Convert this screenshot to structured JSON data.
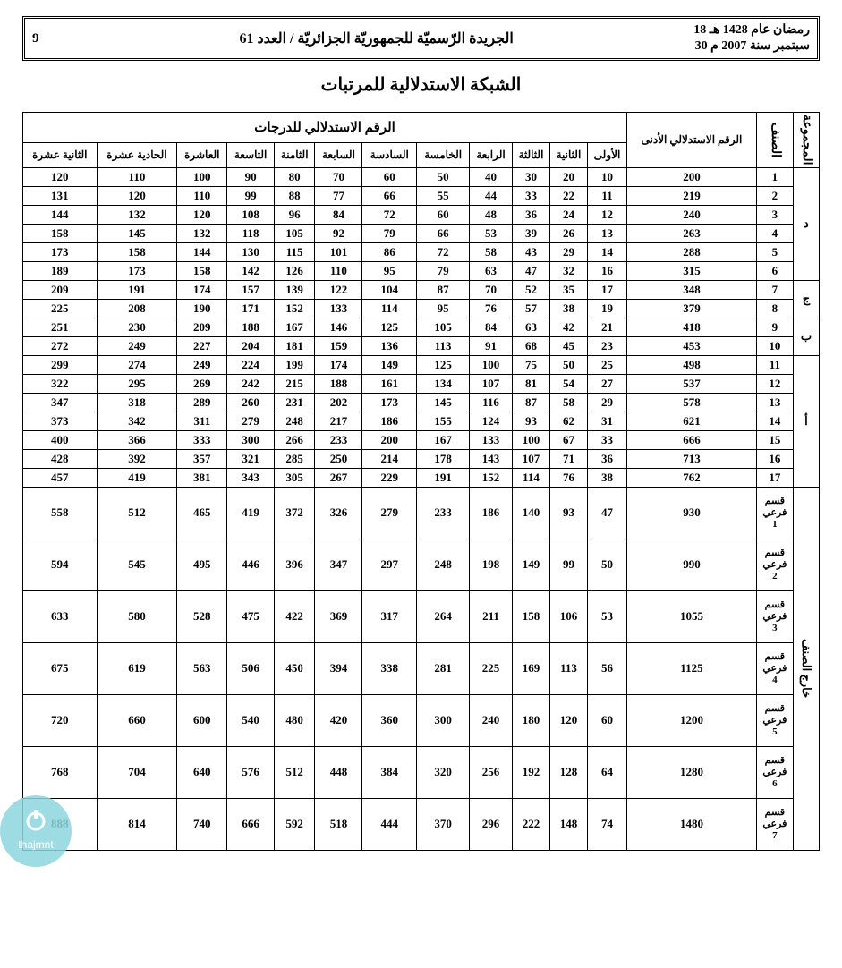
{
  "header": {
    "page_no": "9",
    "center": "الجريدة الرّسميّة للجمهوريّة الجزائريّة / العدد 61",
    "date_hijri": "18 رمضان عام 1428 هـ",
    "date_greg": "30 سبتمبر سنة 2007 م"
  },
  "title": "الشبكة الاستدلالية للمرتبات",
  "columns": {
    "group": "المجموعة",
    "class": "الصنف",
    "min_index": "الرقم الاستدلالي الأدنى",
    "degree_header": "الرقم الاستدلالي للدرجات",
    "degrees": [
      "الأولى",
      "الثانية",
      "الثالثة",
      "الرابعة",
      "الخامسة",
      "السادسة",
      "السابعة",
      "الثامنة",
      "التاسعة",
      "العاشرة",
      "الحادية عشرة",
      "الثانية عشرة"
    ]
  },
  "groups": {
    "d": "د",
    "j": "ج",
    "b": "ب",
    "a": "أ",
    "out": "خارج الصنف"
  },
  "rows_a": [
    {
      "cls": "1",
      "min": "200",
      "v": [
        "10",
        "20",
        "30",
        "40",
        "50",
        "60",
        "70",
        "80",
        "90",
        "100",
        "110",
        "120"
      ]
    },
    {
      "cls": "2",
      "min": "219",
      "v": [
        "11",
        "22",
        "33",
        "44",
        "55",
        "66",
        "77",
        "88",
        "99",
        "110",
        "120",
        "131"
      ]
    },
    {
      "cls": "3",
      "min": "240",
      "v": [
        "12",
        "24",
        "36",
        "48",
        "60",
        "72",
        "84",
        "96",
        "108",
        "120",
        "132",
        "144"
      ]
    },
    {
      "cls": "4",
      "min": "263",
      "v": [
        "13",
        "26",
        "39",
        "53",
        "66",
        "79",
        "92",
        "105",
        "118",
        "132",
        "145",
        "158"
      ]
    },
    {
      "cls": "5",
      "min": "288",
      "v": [
        "14",
        "29",
        "43",
        "58",
        "72",
        "86",
        "101",
        "115",
        "130",
        "144",
        "158",
        "173"
      ]
    },
    {
      "cls": "6",
      "min": "315",
      "v": [
        "16",
        "32",
        "47",
        "63",
        "79",
        "95",
        "110",
        "126",
        "142",
        "158",
        "173",
        "189"
      ]
    },
    {
      "cls": "7",
      "min": "348",
      "v": [
        "17",
        "35",
        "52",
        "70",
        "87",
        "104",
        "122",
        "139",
        "157",
        "174",
        "191",
        "209"
      ]
    },
    {
      "cls": "8",
      "min": "379",
      "v": [
        "19",
        "38",
        "57",
        "76",
        "95",
        "114",
        "133",
        "152",
        "171",
        "190",
        "208",
        "225"
      ]
    },
    {
      "cls": "9",
      "min": "418",
      "v": [
        "21",
        "42",
        "63",
        "84",
        "105",
        "125",
        "146",
        "167",
        "188",
        "209",
        "230",
        "251"
      ]
    },
    {
      "cls": "10",
      "min": "453",
      "v": [
        "23",
        "45",
        "68",
        "91",
        "113",
        "136",
        "159",
        "181",
        "204",
        "227",
        "249",
        "272"
      ]
    },
    {
      "cls": "11",
      "min": "498",
      "v": [
        "25",
        "50",
        "75",
        "100",
        "125",
        "149",
        "174",
        "199",
        "224",
        "249",
        "274",
        "299"
      ]
    },
    {
      "cls": "12",
      "min": "537",
      "v": [
        "27",
        "54",
        "81",
        "107",
        "134",
        "161",
        "188",
        "215",
        "242",
        "269",
        "295",
        "322"
      ]
    },
    {
      "cls": "13",
      "min": "578",
      "v": [
        "29",
        "58",
        "87",
        "116",
        "145",
        "173",
        "202",
        "231",
        "260",
        "289",
        "318",
        "347"
      ]
    },
    {
      "cls": "14",
      "min": "621",
      "v": [
        "31",
        "62",
        "93",
        "124",
        "155",
        "186",
        "217",
        "248",
        "279",
        "311",
        "342",
        "373"
      ]
    },
    {
      "cls": "15",
      "min": "666",
      "v": [
        "33",
        "67",
        "100",
        "133",
        "167",
        "200",
        "233",
        "266",
        "300",
        "333",
        "366",
        "400"
      ]
    },
    {
      "cls": "16",
      "min": "713",
      "v": [
        "36",
        "71",
        "107",
        "143",
        "178",
        "214",
        "250",
        "285",
        "321",
        "357",
        "392",
        "428"
      ]
    },
    {
      "cls": "17",
      "min": "762",
      "v": [
        "38",
        "76",
        "114",
        "152",
        "191",
        "229",
        "267",
        "305",
        "343",
        "381",
        "419",
        "457"
      ]
    }
  ],
  "rows_b": [
    {
      "cls": "قسم فرعي 1",
      "min": "930",
      "v": [
        "47",
        "93",
        "140",
        "186",
        "233",
        "279",
        "326",
        "372",
        "419",
        "465",
        "512",
        "558"
      ]
    },
    {
      "cls": "قسم فرعي 2",
      "min": "990",
      "v": [
        "50",
        "99",
        "149",
        "198",
        "248",
        "297",
        "347",
        "396",
        "446",
        "495",
        "545",
        "594"
      ]
    },
    {
      "cls": "قسم فرعي 3",
      "min": "1055",
      "v": [
        "53",
        "106",
        "158",
        "211",
        "264",
        "317",
        "369",
        "422",
        "475",
        "528",
        "580",
        "633"
      ]
    },
    {
      "cls": "قسم فرعي 4",
      "min": "1125",
      "v": [
        "56",
        "113",
        "169",
        "225",
        "281",
        "338",
        "394",
        "450",
        "506",
        "563",
        "619",
        "675"
      ]
    },
    {
      "cls": "قسم فرعي 5",
      "min": "1200",
      "v": [
        "60",
        "120",
        "180",
        "240",
        "300",
        "360",
        "420",
        "480",
        "540",
        "600",
        "660",
        "720"
      ]
    },
    {
      "cls": "قسم فرعي 6",
      "min": "1280",
      "v": [
        "64",
        "128",
        "192",
        "256",
        "320",
        "384",
        "448",
        "512",
        "576",
        "640",
        "704",
        "768"
      ]
    },
    {
      "cls": "قسم فرعي 7",
      "min": "1480",
      "v": [
        "74",
        "148",
        "222",
        "296",
        "370",
        "444",
        "518",
        "592",
        "666",
        "740",
        "814",
        "888"
      ]
    }
  ],
  "watermark": "thajmnt"
}
